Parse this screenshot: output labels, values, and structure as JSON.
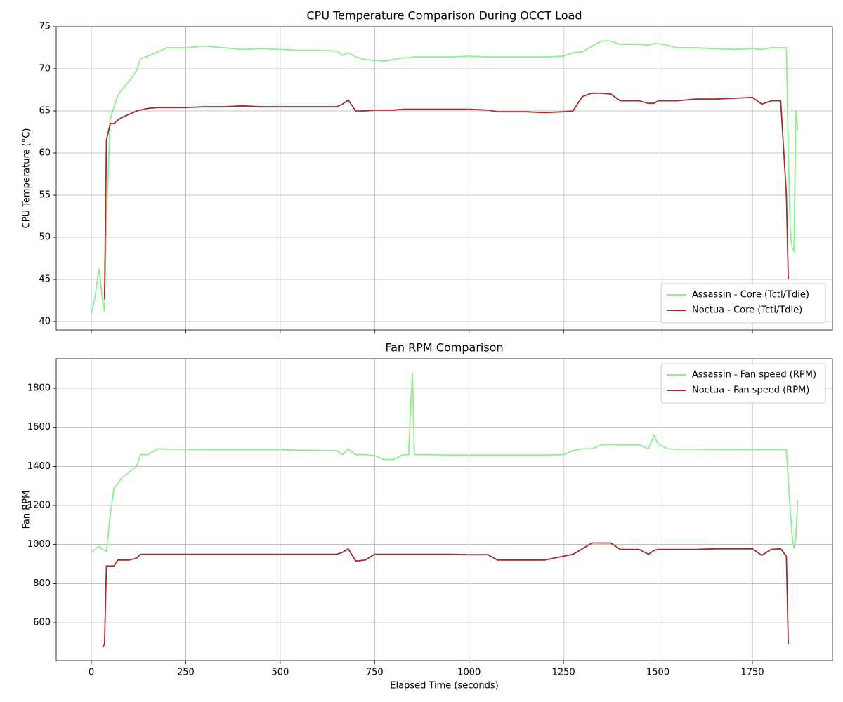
{
  "chart_data": [
    {
      "type": "line",
      "title": "CPU Temperature Comparison During OCCT Load",
      "ylabel": "CPU Temperature (°C)",
      "x": [
        0,
        10,
        20,
        30,
        35,
        40,
        50,
        60,
        70,
        80,
        100,
        120,
        130,
        150,
        175,
        200,
        250,
        300,
        350,
        400,
        450,
        500,
        550,
        600,
        650,
        665,
        680,
        700,
        725,
        750,
        775,
        800,
        825,
        840,
        845,
        850,
        855,
        875,
        900,
        950,
        1000,
        1050,
        1075,
        1100,
        1150,
        1200,
        1250,
        1275,
        1300,
        1325,
        1350,
        1375,
        1400,
        1450,
        1475,
        1490,
        1500,
        1525,
        1550,
        1600,
        1650,
        1700,
        1750,
        1775,
        1800,
        1825,
        1840,
        1845,
        1850,
        1855,
        1860,
        1865,
        1870
      ],
      "series": [
        {
          "name": "Assassin - Core (Tctl/Tdie)",
          "color": "#90ee90",
          "values": [
            40.8,
            43,
            46.3,
            42.5,
            41.2,
            52,
            64,
            65.5,
            66.8,
            67.5,
            68.5,
            69.8,
            71.2,
            71.5,
            72,
            72.5,
            72.5,
            72.7,
            72.5,
            72.3,
            72.4,
            72.3,
            72.2,
            72.2,
            72.1,
            71.6,
            71.9,
            71.4,
            71.1,
            71,
            70.9,
            71.1,
            71.3,
            71.3,
            71.3,
            71.4,
            71.4,
            71.4,
            71.4,
            71.4,
            71.5,
            71.4,
            71.4,
            71.4,
            71.4,
            71.4,
            71.5,
            71.9,
            72,
            72.7,
            73.3,
            73.3,
            72.9,
            72.9,
            72.8,
            73,
            73,
            72.8,
            72.5,
            72.5,
            72.4,
            72.3,
            72.4,
            72.3,
            72.5,
            72.5,
            72.5,
            60,
            51,
            48.8,
            48.4,
            65.1,
            62.7
          ]
        },
        {
          "name": "Noctua - Core (Tctl/Tdie)",
          "color": "#a52a2a",
          "values": [
            null,
            null,
            null,
            null,
            42.6,
            61.5,
            63.5,
            63.5,
            63.9,
            64.2,
            64.6,
            65,
            65.1,
            65.3,
            65.4,
            65.4,
            65.4,
            65.5,
            65.5,
            65.6,
            65.5,
            65.5,
            65.5,
            65.5,
            65.5,
            65.8,
            66.3,
            65,
            65,
            65.1,
            65.1,
            65.1,
            65.2,
            65.2,
            65.2,
            65.2,
            65.2,
            65.2,
            65.2,
            65.2,
            65.2,
            65.1,
            64.9,
            64.9,
            64.9,
            64.8,
            64.9,
            65,
            66.7,
            67.1,
            67.1,
            67,
            66.2,
            66.2,
            65.9,
            65.9,
            66.2,
            66.2,
            66.2,
            66.4,
            66.4,
            66.5,
            66.6,
            65.8,
            66.2,
            66.2,
            55,
            45,
            null,
            null,
            null,
            null,
            null
          ]
        }
      ],
      "xlim": [
        -93,
        1962
      ],
      "xticks": [
        0,
        250,
        500,
        750,
        1000,
        1250,
        1500,
        1750
      ],
      "ylim": [
        39,
        75
      ],
      "yticks": [
        40,
        45,
        50,
        55,
        60,
        65,
        70,
        75
      ],
      "grid": true,
      "legend": "lower right"
    },
    {
      "type": "line",
      "title": "Fan RPM Comparison",
      "ylabel": "Fan RPM",
      "xlabel": "Elapsed Time (seconds)",
      "x": [
        0,
        10,
        20,
        30,
        35,
        40,
        50,
        60,
        70,
        80,
        100,
        120,
        130,
        150,
        175,
        200,
        250,
        300,
        350,
        400,
        450,
        500,
        550,
        600,
        650,
        665,
        680,
        700,
        725,
        750,
        775,
        800,
        825,
        840,
        845,
        850,
        855,
        875,
        900,
        950,
        1000,
        1050,
        1075,
        1100,
        1150,
        1200,
        1250,
        1275,
        1300,
        1325,
        1350,
        1375,
        1400,
        1450,
        1475,
        1490,
        1500,
        1525,
        1550,
        1600,
        1650,
        1700,
        1750,
        1775,
        1800,
        1825,
        1840,
        1845,
        1850,
        1855,
        1860,
        1865,
        1870
      ],
      "series": [
        {
          "name": "Assassin - Fan speed (RPM)",
          "color": "#90ee90",
          "values": [
            960,
            975,
            990,
            975,
            970,
            965,
            1150,
            1290,
            1310,
            1340,
            1370,
            1400,
            1460,
            1460,
            1490,
            1488,
            1488,
            1485,
            1485,
            1485,
            1485,
            1485,
            1483,
            1482,
            1480,
            1460,
            1490,
            1460,
            1460,
            1455,
            1435,
            1435,
            1460,
            1460,
            1700,
            1880,
            1460,
            1460,
            1460,
            1458,
            1458,
            1458,
            1458,
            1458,
            1458,
            1458,
            1460,
            1480,
            1490,
            1490,
            1510,
            1512,
            1510,
            1510,
            1490,
            1560,
            1515,
            1490,
            1488,
            1488,
            1487,
            1486,
            1486,
            1486,
            1486,
            1486,
            1485,
            1330,
            1180,
            1050,
            980,
            1030,
            1230
          ]
        },
        {
          "name": "Noctua - Fan speed (RPM)",
          "color": "#a52a2a",
          "values": [
            null,
            null,
            null,
            475,
            490,
            890,
            890,
            890,
            920,
            920,
            920,
            930,
            950,
            950,
            950,
            950,
            950,
            950,
            950,
            950,
            950,
            950,
            950,
            950,
            950,
            960,
            978,
            915,
            920,
            950,
            950,
            950,
            950,
            950,
            950,
            950,
            950,
            950,
            950,
            950,
            948,
            948,
            920,
            920,
            920,
            920,
            940,
            950,
            978,
            1008,
            1008,
            1008,
            975,
            975,
            950,
            970,
            975,
            975,
            975,
            975,
            978,
            978,
            978,
            945,
            975,
            978,
            940,
            490,
            null,
            null,
            null,
            null,
            null
          ]
        }
      ],
      "xlim": [
        -93,
        1962
      ],
      "xticks": [
        0,
        250,
        500,
        750,
        1000,
        1250,
        1500,
        1750
      ],
      "ylim": [
        406,
        1951
      ],
      "yticks": [
        600,
        800,
        1000,
        1200,
        1400,
        1600,
        1800
      ],
      "grid": true,
      "legend": "upper right"
    }
  ]
}
